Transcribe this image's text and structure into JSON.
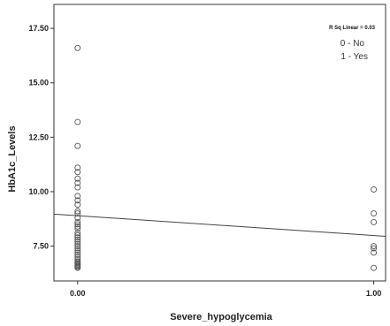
{
  "chart_data": {
    "type": "scatter",
    "xlabel": "Severe_hypoglycemia",
    "ylabel": "HbA1c_Levels",
    "xlim": [
      -0.08,
      1.04
    ],
    "ylim": [
      5.9,
      18.6
    ],
    "x_ticks": [
      0.0,
      1.0
    ],
    "x_tick_labels": [
      "0.00",
      "1.00"
    ],
    "y_ticks": [
      7.5,
      10.0,
      12.5,
      15.0,
      17.5
    ],
    "y_tick_labels": [
      "7.50",
      "10.00",
      "12.50",
      "15.00",
      "17.50"
    ],
    "grid": false,
    "annotation": "R Sq Linear = 0.03",
    "legend_lines": [
      "0 - No",
      "1 - Yes"
    ],
    "legend_position": "top-right",
    "marker": "open-circle",
    "series": [
      {
        "x": [
          0,
          0,
          0,
          0,
          0,
          0,
          0,
          0,
          0,
          0,
          0,
          0,
          0,
          0,
          0,
          0,
          0,
          0,
          0,
          0,
          0,
          0,
          0,
          0,
          0,
          0,
          0,
          0,
          0,
          0,
          0,
          0,
          0,
          0,
          0,
          0,
          0,
          0,
          1,
          1,
          1,
          1,
          1,
          1,
          1
        ],
        "y": [
          16.6,
          13.2,
          12.1,
          11.1,
          10.9,
          10.6,
          10.4,
          10.2,
          9.8,
          9.6,
          9.4,
          9.1,
          9.0,
          8.8,
          8.6,
          8.5,
          8.4,
          8.3,
          8.1,
          8.0,
          7.9,
          7.8,
          7.7,
          7.6,
          7.5,
          7.4,
          7.3,
          7.2,
          7.1,
          7.0,
          6.9,
          6.8,
          6.75,
          6.7,
          6.65,
          6.6,
          6.55,
          6.5,
          10.1,
          9.0,
          8.6,
          7.5,
          7.4,
          7.2,
          6.5
        ]
      }
    ],
    "fit_line": {
      "x": [
        -0.08,
        1.04
      ],
      "y": [
        8.97,
        7.95
      ]
    }
  }
}
